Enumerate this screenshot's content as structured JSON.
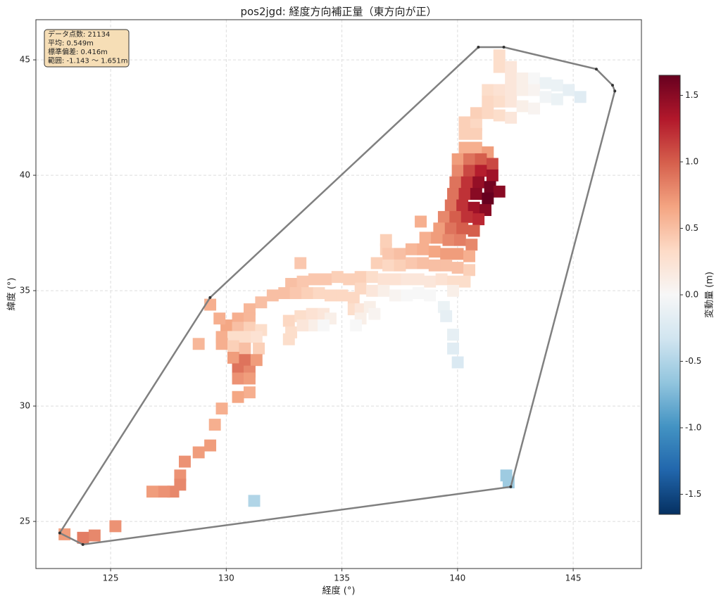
{
  "chart_data": {
    "type": "scatter",
    "title": "pos2jgd: 経度方向補正量（東方向が正）",
    "x_label": "経度 (°)",
    "y_label": "緯度 (°)",
    "stats": [
      "データ点数: 21134",
      "平均: 0.549m",
      "標準偏差: 0.416m",
      "範囲: -1.143 ～ 1.651m"
    ],
    "xlim": [
      121.77,
      147.95
    ],
    "xticks": [
      125,
      130,
      135,
      140,
      145
    ],
    "ylim": [
      22.96,
      46.74
    ],
    "yticks": [
      25,
      30,
      35,
      40,
      45
    ],
    "grid": true,
    "x": [
      141.8,
      141.8,
      142.3,
      142.3,
      142.8,
      143.3,
      143.8,
      144.3,
      144.8,
      145.3,
      141.3,
      141.8,
      142.3,
      142.8,
      143.3,
      143.8,
      144.3,
      141.3,
      141.8,
      142.3,
      142.8,
      143.3,
      140.8,
      141.3,
      141.8,
      142.3,
      140.3,
      140.8,
      140.3,
      140.8,
      140.3,
      140.8,
      141.3,
      140.0,
      140.5,
      141.0,
      141.5,
      140.0,
      140.5,
      141.0,
      141.5,
      139.9,
      140.4,
      140.9,
      141.4,
      141.8,
      139.8,
      140.3,
      140.8,
      141.3,
      139.7,
      140.2,
      140.7,
      141.2,
      139.4,
      139.9,
      140.4,
      140.9,
      139.2,
      139.7,
      140.2,
      140.7,
      138.6,
      139.1,
      139.6,
      140.1,
      140.6,
      138.4,
      136.9,
      136.9,
      137.0,
      137.5,
      138.0,
      138.5,
      139.0,
      139.5,
      140.0,
      140.5,
      136.5,
      137.0,
      137.5,
      138.0,
      138.5,
      139.0,
      139.5,
      140.0,
      140.5,
      135.8,
      136.3,
      136.8,
      137.3,
      137.8,
      138.3,
      138.8,
      139.3,
      139.8,
      140.3,
      135.8,
      136.3,
      136.8,
      137.3,
      137.8,
      138.3,
      138.8,
      139.8,
      132.8,
      133.3,
      133.8,
      134.3,
      134.8,
      135.3,
      131.5,
      132.0,
      132.5,
      133.0,
      133.5,
      134.0,
      134.5,
      135.0,
      135.5,
      131.0,
      135.5,
      135.8,
      136.2,
      136.4,
      132.7,
      133.2,
      133.7,
      134.2,
      134.5,
      132.8,
      133.3,
      133.8,
      134.2,
      132.7,
      133.2,
      135.8,
      135.6,
      130.5,
      131.0,
      130.0,
      130.5,
      131.0,
      131.5,
      129.8,
      130.3,
      130.8,
      131.3,
      129.8,
      130.3,
      130.8,
      131.4,
      130.3,
      130.8,
      131.3,
      130.5,
      131.0,
      130.5,
      131.0,
      128.8,
      129.3,
      129.7,
      131.0,
      130.5,
      129.8,
      129.5,
      129.3,
      128.8,
      128.2,
      128.0,
      128.0,
      127.7,
      127.3,
      126.8,
      125.2,
      124.3,
      123.8,
      123.0,
      131.2,
      142.1,
      142.2,
      139.4,
      139.5,
      139.8,
      139.8,
      140.0
    ],
    "y": [
      45.2,
      44.7,
      44.7,
      44.2,
      44.2,
      44.2,
      44.0,
      43.9,
      43.7,
      43.4,
      43.7,
      43.7,
      43.7,
      43.7,
      43.7,
      43.4,
      43.3,
      43.2,
      43.2,
      43.2,
      43.0,
      42.9,
      42.7,
      42.7,
      42.6,
      42.5,
      42.3,
      42.2,
      41.8,
      41.8,
      41.2,
      41.2,
      41.0,
      40.7,
      40.7,
      40.7,
      40.5,
      40.2,
      40.2,
      40.2,
      40.0,
      39.7,
      39.7,
      39.7,
      39.5,
      39.3,
      39.2,
      39.2,
      39.2,
      39.0,
      38.7,
      38.7,
      38.6,
      38.5,
      38.2,
      38.2,
      38.2,
      38.1,
      37.7,
      37.7,
      37.7,
      37.6,
      37.3,
      37.3,
      37.2,
      37.2,
      37.0,
      38.0,
      37.2,
      36.8,
      36.6,
      36.6,
      36.8,
      36.8,
      36.7,
      36.6,
      36.6,
      36.5,
      36.2,
      36.1,
      36.1,
      36.2,
      36.2,
      36.1,
      36.1,
      36.0,
      35.9,
      35.6,
      35.6,
      35.5,
      35.5,
      35.5,
      35.5,
      35.4,
      35.5,
      35.4,
      35.4,
      35.1,
      35.0,
      35.0,
      34.8,
      34.8,
      34.9,
      34.8,
      35.0,
      35.3,
      35.4,
      35.5,
      35.5,
      35.6,
      35.5,
      34.5,
      34.8,
      34.9,
      34.9,
      34.9,
      34.9,
      34.8,
      34.8,
      34.7,
      34.2,
      34.2,
      34.2,
      34.3,
      34.0,
      33.7,
      33.9,
      34.0,
      34.0,
      33.8,
      33.2,
      33.5,
      33.5,
      33.5,
      32.9,
      36.2,
      33.8,
      33.5,
      33.8,
      33.8,
      33.5,
      33.4,
      33.4,
      33.3,
      33.0,
      33.0,
      33.0,
      33.0,
      32.7,
      32.6,
      32.5,
      32.5,
      32.1,
      32.0,
      32.0,
      31.6,
      31.5,
      31.2,
      31.2,
      32.7,
      34.4,
      33.8,
      30.6,
      30.4,
      29.9,
      29.2,
      28.3,
      28.0,
      27.6,
      27.0,
      26.6,
      26.3,
      26.3,
      26.3,
      24.8,
      24.4,
      24.3,
      24.45,
      25.9,
      27.0,
      26.7,
      34.3,
      33.9,
      33.1,
      32.5,
      31.9
    ],
    "values": [
      0.3,
      0.3,
      0.2,
      0.2,
      0.1,
      0.0,
      -0.1,
      -0.1,
      -0.15,
      -0.2,
      0.3,
      0.25,
      0.2,
      0.1,
      0.05,
      -0.05,
      -0.1,
      0.35,
      0.3,
      0.2,
      0.1,
      0.05,
      0.4,
      0.35,
      0.3,
      0.2,
      0.4,
      0.35,
      0.4,
      0.4,
      0.6,
      0.6,
      0.7,
      0.7,
      0.9,
      1.0,
      1.1,
      0.8,
      1.1,
      1.3,
      1.4,
      0.9,
      1.2,
      1.45,
      1.6,
      1.5,
      0.9,
      1.2,
      1.5,
      1.65,
      0.9,
      1.2,
      1.4,
      1.5,
      0.8,
      1.0,
      1.2,
      1.25,
      0.7,
      0.9,
      1.0,
      1.0,
      0.6,
      0.7,
      0.8,
      0.85,
      0.8,
      0.6,
      0.4,
      0.4,
      0.45,
      0.5,
      0.55,
      0.6,
      0.65,
      0.7,
      0.7,
      0.6,
      0.4,
      0.35,
      0.4,
      0.45,
      0.5,
      0.5,
      0.5,
      0.5,
      0.4,
      0.4,
      0.3,
      0.25,
      0.25,
      0.2,
      0.2,
      0.2,
      0.25,
      0.3,
      0.3,
      0.35,
      0.2,
      0.1,
      0.05,
      0.0,
      0.0,
      0.0,
      0.1,
      0.5,
      0.45,
      0.45,
      0.45,
      0.4,
      0.4,
      0.5,
      0.5,
      0.5,
      0.45,
      0.4,
      0.35,
      0.35,
      0.35,
      0.35,
      0.55,
      0.3,
      0.2,
      0.1,
      0.05,
      0.35,
      0.3,
      0.25,
      0.2,
      0.1,
      0.3,
      0.2,
      0.1,
      0.0,
      0.3,
      0.45,
      0.1,
      0.0,
      0.6,
      0.55,
      0.65,
      0.5,
      0.4,
      0.3,
      0.6,
      0.3,
      0.3,
      0.25,
      0.6,
      0.4,
      0.5,
      0.4,
      0.7,
      0.9,
      0.7,
      0.9,
      0.8,
      0.75,
      0.7,
      0.55,
      0.6,
      0.6,
      0.6,
      0.65,
      0.6,
      0.6,
      0.7,
      0.7,
      0.75,
      0.75,
      0.8,
      0.8,
      0.75,
      0.7,
      0.75,
      0.8,
      0.85,
      0.7,
      -0.5,
      -0.6,
      -0.6,
      -0.1,
      -0.15,
      -0.15,
      -0.2,
      -0.25
    ],
    "hull": {
      "color": "#808080",
      "x": [
        140.9,
        142.0,
        146.0,
        146.7,
        146.8,
        142.3,
        123.8,
        122.8,
        129.3
      ],
      "y": [
        45.55,
        45.55,
        44.6,
        43.9,
        43.65,
        26.5,
        24.0,
        24.5,
        34.7
      ]
    },
    "colorbar": {
      "label": "変動量 (m)",
      "clim": [
        -1.651,
        1.651
      ],
      "colors": [
        "#053061",
        "#2166ac",
        "#4393c3",
        "#92c5de",
        "#d1e5f0",
        "#f7f7f7",
        "#fddbc7",
        "#f4a582",
        "#d6604d",
        "#b2182b",
        "#67001f"
      ],
      "ticks": [
        {
          "value": -1.5,
          "label": "-1.5"
        },
        {
          "value": -1,
          "label": "-1.0"
        },
        -0.5,
        {
          "value": 0,
          "label": "0.0"
        },
        0.5,
        {
          "value": 1,
          "label": "1.0"
        },
        1.5
      ]
    }
  }
}
